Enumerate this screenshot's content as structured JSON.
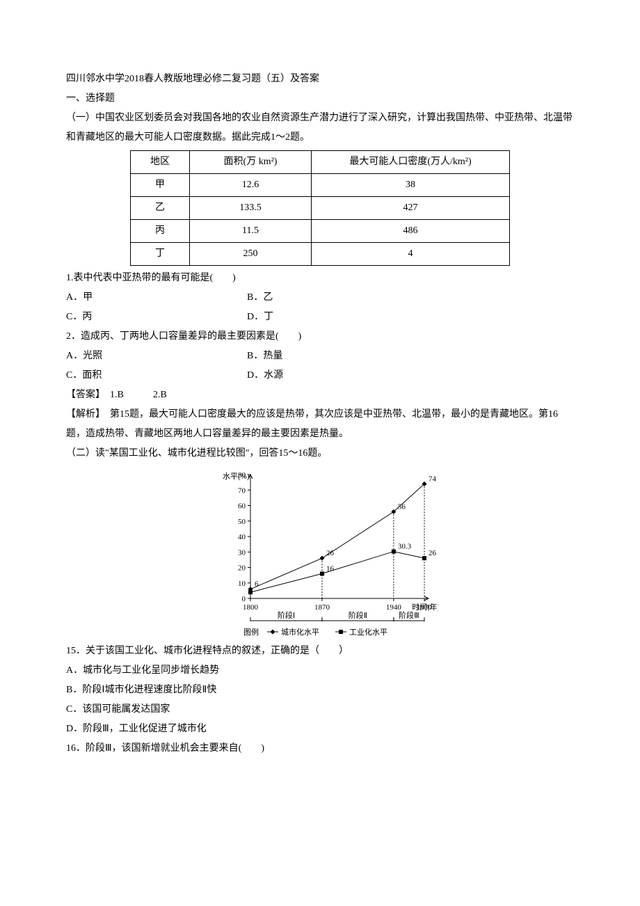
{
  "header": {
    "title": "四川邻水中学2018春人教版地理必修二复习题（五）及答案",
    "section1": "一、选择题"
  },
  "group1": {
    "intro": "（一）中国农业区划委员会对我国各地的农业自然资源生产潜力进行了深入研究，计算出我国热带、中亚热带、北温带和青藏地区的最大可能人口密度数据。据此完成1～2题。",
    "table": {
      "headers": [
        "地区",
        "面积(万 km²)",
        "最大可能人口密度(万人/km²)"
      ],
      "rows": [
        [
          "甲",
          "12.6",
          "38"
        ],
        [
          "乙",
          "133.5",
          "427"
        ],
        [
          "丙",
          "11.5",
          "486"
        ],
        [
          "丁",
          "250",
          "4"
        ]
      ]
    },
    "q1": {
      "stem": "1.表中代表中亚热带的最有可能是(　　)",
      "opts": {
        "A": "A．甲",
        "B": "B．乙",
        "C": "C．丙",
        "D": "D．丁"
      }
    },
    "q2": {
      "stem": "2．造成丙、丁两地人口容量差异的最主要因素是(　　)",
      "opts": {
        "A": "A．光照",
        "B": "B．热量",
        "C": "C．面积",
        "D": "D．水源"
      }
    },
    "answer": "【答案】　1.B　　　2.B",
    "explain": "【解析】　第15题，最大可能人口密度最大的应该是热带，其次应该是中亚热带、北温带，最小的是青藏地区。第16题，造成热带、青藏地区两地人口容量差异的最主要因素是热量。"
  },
  "group2": {
    "intro": "（二）读\"某国工业化、城市化进程比较图\"，回答15～16题。",
    "chart": {
      "type": "line",
      "y_label": "水平(%)",
      "x_label": "时间(年)",
      "ylim": [
        0,
        80
      ],
      "ytick_step": 10,
      "x_categories": [
        "1800",
        "1870",
        "1940",
        "1970"
      ],
      "x_segments": [
        "阶段Ⅰ",
        "阶段Ⅱ",
        "阶段Ⅲ"
      ],
      "series": [
        {
          "name": "城市化水平",
          "marker": "diamond",
          "color": "#000000",
          "points": [
            {
              "x": "1800",
              "y": 6,
              "label": "6"
            },
            {
              "x": "1870",
              "y": 26,
              "label": "26"
            },
            {
              "x": "1940",
              "y": 56,
              "label": "56"
            },
            {
              "x": "1970",
              "y": 74,
              "label": "74"
            }
          ]
        },
        {
          "name": "工业化水平",
          "marker": "square",
          "color": "#000000",
          "points": [
            {
              "x": "1800",
              "y": 4,
              "label": ""
            },
            {
              "x": "1870",
              "y": 16,
              "label": "16"
            },
            {
              "x": "1940",
              "y": 30.3,
              "label": "30.3"
            },
            {
              "x": "1970",
              "y": 26,
              "label": "26"
            }
          ]
        }
      ],
      "legend_prefix": "图例",
      "axis_color": "#000000",
      "grid_color": "#000000",
      "label_fontsize": 11
    },
    "q15": {
      "stem": "15．关于该国工业化、城市化进程特点的叙述，正确的是（　　）",
      "opts": {
        "A": "A．城市化与工业化呈同步增长趋势",
        "B": "B．阶段Ⅰ城市化进程速度比阶段Ⅱ快",
        "C": "C．该国可能属发达国家",
        "D": "D．阶段Ⅲ，工业化促进了城市化"
      }
    },
    "q16": {
      "stem": "16．阶段Ⅲ，该国新增就业机会主要来自(　　)"
    }
  }
}
